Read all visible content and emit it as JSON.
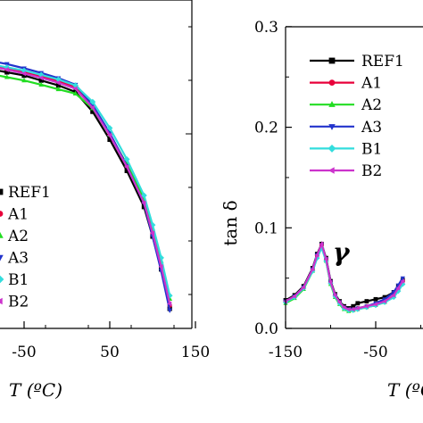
{
  "chart_data": [
    {
      "type": "line",
      "title": "",
      "xlabel": "T (ºC)",
      "ylabel": "",
      "xlim": [
        -90,
        150
      ],
      "ylim": [
        0,
        1
      ],
      "xticks": [
        -50,
        50,
        150
      ],
      "grid": false,
      "legend_position": "bottom-left",
      "series": [
        {
          "name": "REF1",
          "color": "#000000",
          "marker": "square",
          "x": [
            -90,
            -70,
            -50,
            -30,
            -10,
            10,
            30,
            50,
            70,
            90,
            100,
            110,
            120
          ],
          "y": [
            0.79,
            0.78,
            0.77,
            0.755,
            0.74,
            0.72,
            0.66,
            0.575,
            0.48,
            0.37,
            0.28,
            0.18,
            0.06
          ]
        },
        {
          "name": "A1",
          "color": "#e8003a",
          "marker": "circle",
          "x": [
            -90,
            -70,
            -50,
            -30,
            -10,
            10,
            30,
            50,
            70,
            90,
            100,
            110,
            120
          ],
          "y": [
            0.8,
            0.79,
            0.78,
            0.767,
            0.753,
            0.735,
            0.675,
            0.59,
            0.495,
            0.385,
            0.29,
            0.19,
            0.07
          ]
        },
        {
          "name": "A2",
          "color": "#22dd22",
          "marker": "triangle-up",
          "x": [
            -90,
            -70,
            -50,
            -30,
            -10,
            10,
            30,
            50,
            70,
            90,
            100,
            110,
            120
          ],
          "y": [
            0.775,
            0.765,
            0.755,
            0.742,
            0.728,
            0.715,
            0.67,
            0.59,
            0.5,
            0.395,
            0.305,
            0.205,
            0.09
          ]
        },
        {
          "name": "A3",
          "color": "#2233cc",
          "marker": "triangle-down",
          "x": [
            -90,
            -70,
            -50,
            -30,
            -10,
            10,
            30,
            50,
            70,
            90,
            100,
            110,
            120
          ],
          "y": [
            0.815,
            0.805,
            0.792,
            0.778,
            0.762,
            0.742,
            0.68,
            0.595,
            0.495,
            0.38,
            0.28,
            0.175,
            0.055
          ]
        },
        {
          "name": "B1",
          "color": "#33dddd",
          "marker": "diamond",
          "x": [
            -90,
            -70,
            -50,
            -30,
            -10,
            10,
            30,
            50,
            70,
            90,
            100,
            110,
            120
          ],
          "y": [
            0.805,
            0.795,
            0.785,
            0.772,
            0.758,
            0.74,
            0.69,
            0.61,
            0.515,
            0.405,
            0.315,
            0.215,
            0.1
          ]
        },
        {
          "name": "B2",
          "color": "#cc33cc",
          "marker": "triangle-left",
          "x": [
            -90,
            -70,
            -50,
            -30,
            -10,
            10,
            30,
            50,
            70,
            90,
            100,
            110,
            120
          ],
          "y": [
            0.798,
            0.788,
            0.776,
            0.763,
            0.748,
            0.73,
            0.672,
            0.588,
            0.492,
            0.382,
            0.29,
            0.188,
            0.075
          ]
        }
      ]
    },
    {
      "type": "line",
      "title": "",
      "xlabel": "T (ºC)",
      "ylabel": "tan δ",
      "xlim": [
        -150,
        -20
      ],
      "ylim": [
        0,
        0.3
      ],
      "xticks": [
        -150,
        -50
      ],
      "yticks": [
        0.0,
        0.1,
        0.2,
        0.3
      ],
      "grid": false,
      "legend_position": "top-right",
      "annotation": "γ",
      "series": [
        {
          "name": "REF1",
          "color": "#000000",
          "marker": "square",
          "x": [
            -150,
            -140,
            -130,
            -120,
            -115,
            -110,
            -105,
            -100,
            -95,
            -90,
            -85,
            -80,
            -75,
            -70,
            -60,
            -50,
            -40,
            -30,
            -25,
            -20
          ],
          "y": [
            0.028,
            0.033,
            0.042,
            0.06,
            0.074,
            0.084,
            0.07,
            0.047,
            0.034,
            0.027,
            0.022,
            0.02,
            0.022,
            0.025,
            0.027,
            0.029,
            0.031,
            0.036,
            0.042,
            0.048
          ]
        },
        {
          "name": "A1",
          "color": "#e8003a",
          "marker": "circle",
          "x": [
            -150,
            -140,
            -130,
            -120,
            -115,
            -110,
            -105,
            -100,
            -95,
            -90,
            -85,
            -80,
            -75,
            -70,
            -60,
            -50,
            -40,
            -30,
            -25,
            -20
          ],
          "y": [
            0.026,
            0.031,
            0.04,
            0.058,
            0.072,
            0.083,
            0.068,
            0.045,
            0.032,
            0.025,
            0.02,
            0.018,
            0.019,
            0.02,
            0.022,
            0.024,
            0.027,
            0.033,
            0.04,
            0.047
          ]
        },
        {
          "name": "A2",
          "color": "#22dd22",
          "marker": "triangle-up",
          "x": [
            -150,
            -140,
            -130,
            -120,
            -115,
            -110,
            -105,
            -100,
            -95,
            -90,
            -85,
            -80,
            -75,
            -70,
            -60,
            -50,
            -40,
            -30,
            -25,
            -20
          ],
          "y": [
            0.025,
            0.03,
            0.039,
            0.057,
            0.071,
            0.082,
            0.067,
            0.044,
            0.031,
            0.024,
            0.019,
            0.017,
            0.018,
            0.019,
            0.021,
            0.023,
            0.026,
            0.032,
            0.039,
            0.045
          ]
        },
        {
          "name": "A3",
          "color": "#2233cc",
          "marker": "triangle-down",
          "x": [
            -150,
            -140,
            -130,
            -120,
            -115,
            -110,
            -105,
            -100,
            -95,
            -90,
            -85,
            -80,
            -75,
            -70,
            -60,
            -50,
            -40,
            -30,
            -25,
            -20
          ],
          "y": [
            0.027,
            0.032,
            0.041,
            0.059,
            0.073,
            0.083,
            0.069,
            0.046,
            0.033,
            0.026,
            0.021,
            0.019,
            0.019,
            0.02,
            0.022,
            0.025,
            0.029,
            0.036,
            0.043,
            0.05
          ]
        },
        {
          "name": "B1",
          "color": "#33dddd",
          "marker": "diamond",
          "x": [
            -150,
            -140,
            -130,
            -120,
            -115,
            -110,
            -105,
            -100,
            -95,
            -90,
            -85,
            -80,
            -75,
            -70,
            -60,
            -50,
            -40,
            -30,
            -25,
            -20
          ],
          "y": [
            0.026,
            0.031,
            0.04,
            0.057,
            0.07,
            0.08,
            0.067,
            0.045,
            0.032,
            0.025,
            0.02,
            0.018,
            0.018,
            0.019,
            0.021,
            0.023,
            0.026,
            0.031,
            0.037,
            0.044
          ]
        },
        {
          "name": "B2",
          "color": "#cc33cc",
          "marker": "triangle-left",
          "x": [
            -150,
            -140,
            -130,
            -120,
            -115,
            -110,
            -105,
            -100,
            -95,
            -90,
            -85,
            -80,
            -75,
            -70,
            -60,
            -50,
            -40,
            -30,
            -25,
            -20
          ],
          "y": [
            0.027,
            0.032,
            0.041,
            0.059,
            0.073,
            0.084,
            0.069,
            0.046,
            0.033,
            0.026,
            0.021,
            0.019,
            0.019,
            0.02,
            0.022,
            0.024,
            0.027,
            0.033,
            0.04,
            0.047
          ]
        }
      ]
    }
  ]
}
